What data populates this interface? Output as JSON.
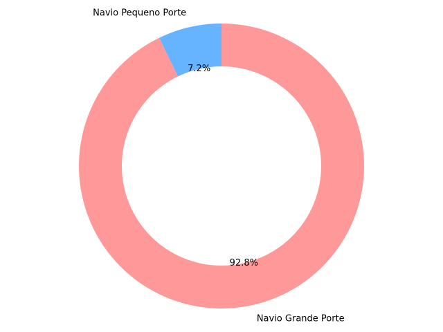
{
  "chart_data": {
    "type": "pie",
    "style": "donut",
    "title": "",
    "slices": [
      {
        "label": "Navio Pequeno Porte",
        "value": 7.2,
        "pct_label": "7.2%",
        "color": "#66b3ff"
      },
      {
        "label": "Navio Grande Porte",
        "value": 92.8,
        "pct_label": "92.8%",
        "color": "#ff9999"
      }
    ],
    "legend": "none",
    "direction": "counterclockwise-from-top"
  }
}
